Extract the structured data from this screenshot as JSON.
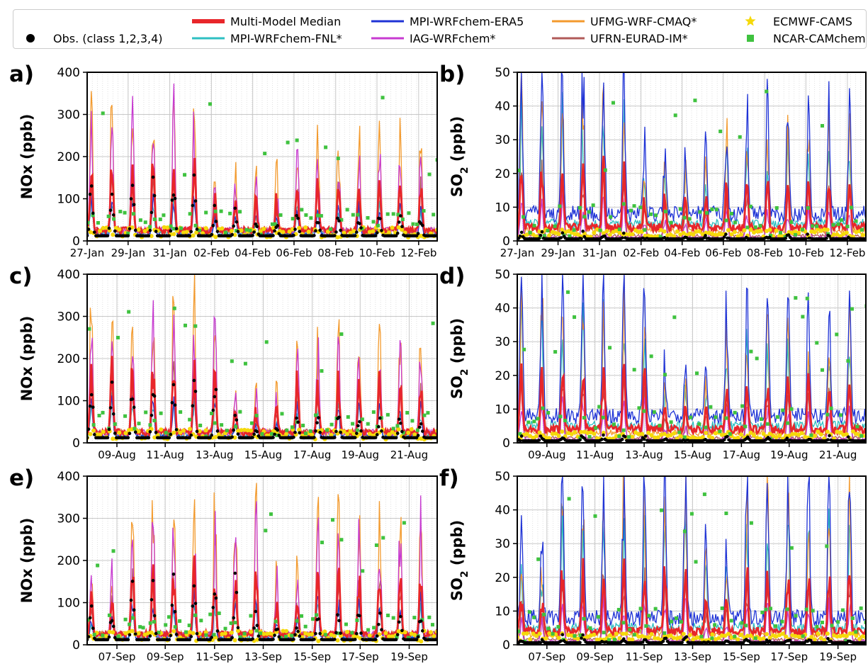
{
  "legend": [
    {
      "label": "Obs. (class 1,2,3,4)",
      "color": "#000000",
      "marker": "dot"
    },
    {
      "label": "Multi-Model Median",
      "color": "#e8262a",
      "marker": "thick-line"
    },
    {
      "label": "MPI-WRFchem-FNL*",
      "color": "#2ebfc2",
      "marker": "line"
    },
    {
      "label": "MPI-WRFchem-ERA5",
      "color": "#1f33d6",
      "marker": "line"
    },
    {
      "label": "IAG-WRFchem*",
      "color": "#c73ad0",
      "marker": "line"
    },
    {
      "label": "UFMG-WRF-CMAQ*",
      "color": "#f39a2d",
      "marker": "line"
    },
    {
      "label": "UFRN-EURAD-IM*",
      "color": "#b05a58",
      "marker": "line"
    },
    {
      "label": "ECMWF-CAMS",
      "color": "#f5d90a",
      "marker": "star"
    },
    {
      "label": "NCAR-CAMchem",
      "color": "#3fc23f",
      "marker": "square"
    }
  ],
  "chart_data": [
    {
      "type": "line",
      "panel_label": "a)",
      "ylabel": "NOx (ppb)",
      "ylim": [
        0,
        400
      ],
      "yticks": [
        "0",
        "100",
        "200",
        "300",
        "400"
      ],
      "x_range": [
        "27-Jan",
        "13-Feb"
      ],
      "xticks": [
        "27-Jan",
        "29-Jan",
        "31-Jan",
        "02-Feb",
        "04-Feb",
        "06-Feb",
        "08-Feb",
        "10-Feb",
        "12-Feb"
      ],
      "series": [
        {
          "name": "Obs. (class 1,2,3,4)",
          "approx_peak": 150,
          "approx_base": 15
        },
        {
          "name": "Multi-Model Median",
          "approx_peak": 190,
          "approx_base": 25
        },
        {
          "name": "UFMG-WRF-CMAQ*",
          "approx_peak": 400
        },
        {
          "name": "IAG-WRFchem*",
          "approx_peak": 290
        }
      ]
    },
    {
      "type": "line",
      "panel_label": "b)",
      "ylabel": "SO2 (ppb)",
      "ylim": [
        0,
        50
      ],
      "yticks": [
        "0",
        "10",
        "20",
        "30",
        "40",
        "50"
      ],
      "x_range": [
        "27-Jan",
        "13-Feb"
      ],
      "xticks": [
        "27-Jan",
        "29-Jan",
        "31-Jan",
        "02-Feb",
        "04-Feb",
        "06-Feb",
        "08-Feb",
        "10-Feb",
        "12-Feb"
      ],
      "series": [
        {
          "name": "Obs. (class 1,2,3,4)",
          "approx_peak": 4,
          "approx_base": 1
        },
        {
          "name": "Multi-Model Median",
          "approx_peak": 20,
          "approx_base": 5
        },
        {
          "name": "MPI-WRFchem-ERA5",
          "approx_peak": 50
        }
      ]
    },
    {
      "type": "line",
      "panel_label": "c)",
      "ylabel": "NOx (ppb)",
      "ylim": [
        0,
        400
      ],
      "yticks": [
        "0",
        "100",
        "200",
        "300",
        "400"
      ],
      "x_range": [
        "07-Aug",
        "22-Aug"
      ],
      "xticks": [
        "09-Aug",
        "11-Aug",
        "13-Aug",
        "15-Aug",
        "17-Aug",
        "19-Aug",
        "21-Aug"
      ],
      "series": [
        {
          "name": "Obs. (class 1,2,3,4)",
          "approx_peak": 240,
          "approx_base": 20
        },
        {
          "name": "Multi-Model Median",
          "approx_peak": 300,
          "approx_base": 30
        },
        {
          "name": "IAG-WRFchem*",
          "approx_peak": 400
        }
      ]
    },
    {
      "type": "line",
      "panel_label": "d)",
      "ylabel": "SO2 (ppb)",
      "ylim": [
        0,
        50
      ],
      "yticks": [
        "0",
        "10",
        "20",
        "30",
        "40",
        "50"
      ],
      "x_range": [
        "07-Aug",
        "22-Aug"
      ],
      "xticks": [
        "09-Aug",
        "11-Aug",
        "13-Aug",
        "15-Aug",
        "17-Aug",
        "19-Aug",
        "21-Aug"
      ],
      "series": [
        {
          "name": "Obs. (class 1,2,3,4)",
          "approx_peak": 2,
          "approx_base": 0.5
        },
        {
          "name": "Multi-Model Median",
          "approx_peak": 31,
          "approx_base": 5
        },
        {
          "name": "MPI-WRFchem-ERA5",
          "approx_peak": 50
        }
      ]
    },
    {
      "type": "line",
      "panel_label": "e)",
      "ylabel": "NOx (ppb)",
      "ylim": [
        0,
        400
      ],
      "yticks": [
        "0",
        "100",
        "200",
        "300",
        "400"
      ],
      "x_range": [
        "05-Sep",
        "20-Sep"
      ],
      "xticks": [
        "07-Sep",
        "09-Sep",
        "11-Sep",
        "13-Sep",
        "15-Sep",
        "17-Sep",
        "19-Sep"
      ],
      "series": [
        {
          "name": "Obs. (class 1,2,3,4)",
          "approx_peak": 150,
          "approx_base": 20
        },
        {
          "name": "Multi-Model Median",
          "approx_peak": 230,
          "approx_base": 30
        },
        {
          "name": "IAG-WRFchem*",
          "approx_peak": 400
        }
      ]
    },
    {
      "type": "line",
      "panel_label": "f)",
      "ylabel": "SO2 (ppb)",
      "ylim": [
        0,
        50
      ],
      "yticks": [
        "0",
        "10",
        "20",
        "30",
        "40",
        "50"
      ],
      "x_range": [
        "05-Sep",
        "20-Sep"
      ],
      "xticks": [
        "07-Sep",
        "09-Sep",
        "11-Sep",
        "13-Sep",
        "15-Sep",
        "17-Sep",
        "19-Sep"
      ],
      "series": [
        {
          "name": "Obs. (class 1,2,3,4)",
          "approx_peak": 2,
          "approx_base": 1
        },
        {
          "name": "Multi-Model Median",
          "approx_peak": 31,
          "approx_base": 5
        },
        {
          "name": "MPI-WRFchem-ERA5",
          "approx_peak": 50
        }
      ]
    }
  ]
}
